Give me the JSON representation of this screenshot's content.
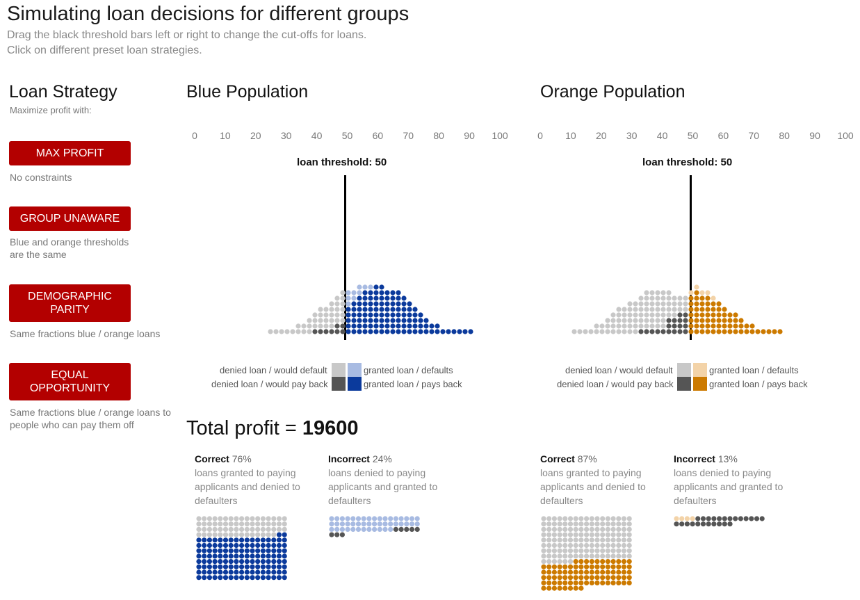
{
  "header": {
    "title": "Simulating loan decisions for different groups",
    "subtitle_line1": "Drag the black threshold bars left or right to change the cut-offs for loans.",
    "subtitle_line2": "Click on different preset loan strategies."
  },
  "strategy": {
    "title": "Loan Strategy",
    "subtitle": "Maximize profit with:",
    "buttons": [
      {
        "label": "MAX PROFIT",
        "desc": "No constraints"
      },
      {
        "label": "GROUP UNAWARE",
        "desc": "Blue and orange thresholds are the same"
      },
      {
        "label": "DEMOGRAPHIC PARITY",
        "desc": "Same fractions blue / orange loans"
      },
      {
        "label": "EQUAL OPPORTUNITY",
        "desc": "Same fractions blue / orange loans to people who can pay them off"
      }
    ]
  },
  "axis_ticks": [
    "0",
    "10",
    "20",
    "30",
    "40",
    "50",
    "60",
    "70",
    "80",
    "90",
    "100"
  ],
  "populations": [
    {
      "title": "Blue Population",
      "threshold_label": "loan threshold: 50",
      "threshold": 50,
      "legend": {
        "denied_default": "denied loan / would default",
        "denied_payback": "denied loan / would pay back",
        "granted_default": "granted loan / defaults",
        "granted_payback": "granted loan / pays back"
      },
      "colors": {
        "denied_default": "#c8c8c8",
        "denied_payback": "#555555",
        "granted_default": "#a8bbe2",
        "granted_payback": "#0b3a9c"
      },
      "correct_label": "Correct",
      "correct_pct": "76%",
      "correct_desc": "loans granted to paying applicants and denied to defaulters",
      "incorrect_label": "Incorrect",
      "incorrect_pct": "24%",
      "incorrect_desc": "loans denied to paying applicants and granted to defaulters"
    },
    {
      "title": "Orange Population",
      "threshold_label": "loan threshold: 50",
      "threshold": 50,
      "legend": {
        "denied_default": "denied loan / would default",
        "denied_payback": "denied loan / would pay back",
        "granted_default": "granted loan / defaults",
        "granted_payback": "granted loan / pays back"
      },
      "colors": {
        "denied_default": "#c8c8c8",
        "denied_payback": "#555555",
        "granted_default": "#f3d3a8",
        "granted_payback": "#cc7a00"
      },
      "correct_label": "Correct",
      "correct_pct": "87%",
      "correct_desc": "loans granted to paying applicants and denied to defaulters",
      "incorrect_label": "Incorrect",
      "incorrect_pct": "13%",
      "incorrect_desc": "loans denied to paying applicants and granted to defaulters"
    }
  ],
  "profit": {
    "label": "Total profit = ",
    "value": "19600"
  }
}
